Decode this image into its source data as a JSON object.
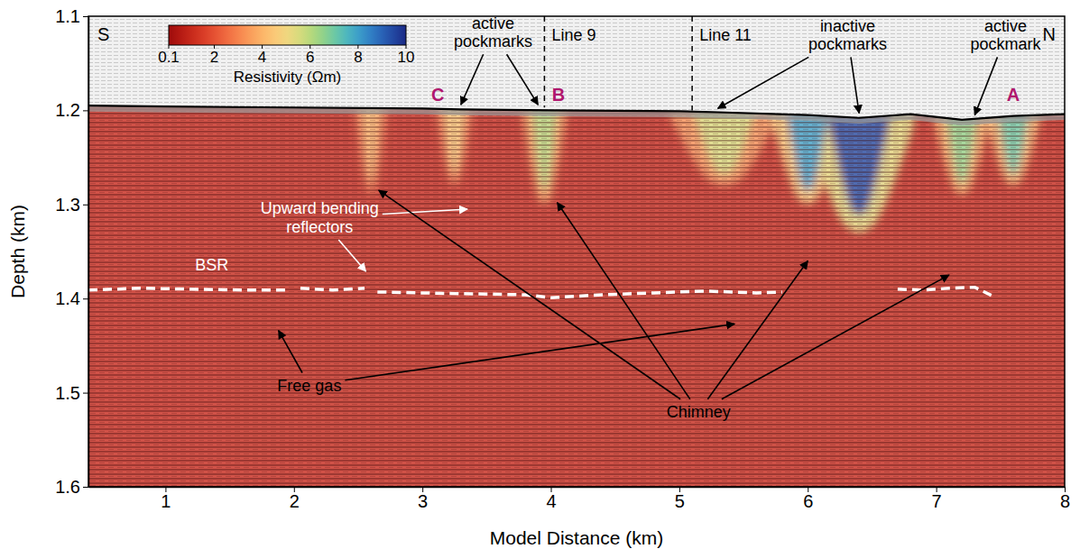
{
  "chart_data": {
    "type": "seismic_section",
    "x_label": "Model Distance (km)",
    "y_label": "Depth (km)",
    "xlim": [
      0.4,
      8.0
    ],
    "xticks": [
      1,
      2,
      3,
      4,
      5,
      6,
      7,
      8
    ],
    "ylim": [
      1.6,
      1.1
    ],
    "yticks": [
      1.1,
      1.2,
      1.3,
      1.4,
      1.5,
      1.6
    ],
    "ends": {
      "left": "S",
      "right": "N"
    },
    "colorbar": {
      "label": "Resistivity (Ωm)",
      "range": [
        0.1,
        10
      ],
      "ticks": [
        0.1,
        2,
        4,
        6,
        8,
        10
      ]
    },
    "background_resistivity": 1,
    "anomalies": [
      {
        "x": 2.6,
        "half_width": 0.09,
        "depth_top": 1.198,
        "depth_bottom": 1.29,
        "resistivity": 4
      },
      {
        "x": 3.25,
        "half_width": 0.1,
        "depth_top": 1.199,
        "depth_bottom": 1.28,
        "resistivity": 4.5
      },
      {
        "x": 3.95,
        "half_width": 0.12,
        "depth_top": 1.2,
        "depth_bottom": 1.3,
        "resistivity": 6
      },
      {
        "x": 5.35,
        "half_width": 0.3,
        "depth_top": 1.202,
        "depth_bottom": 1.28,
        "resistivity": 5.5
      },
      {
        "x": 6.0,
        "half_width": 0.2,
        "depth_top": 1.205,
        "depth_bottom": 1.3,
        "resistivity": 8
      },
      {
        "x": 6.4,
        "half_width": 0.3,
        "depth_top": 1.207,
        "depth_bottom": 1.33,
        "resistivity": 9.5
      },
      {
        "x": 7.2,
        "half_width": 0.15,
        "depth_top": 1.21,
        "depth_bottom": 1.29,
        "resistivity": 6.5
      },
      {
        "x": 7.6,
        "half_width": 0.15,
        "depth_top": 1.206,
        "depth_bottom": 1.28,
        "resistivity": 7
      }
    ],
    "seafloor": {
      "x": [
        0.4,
        1,
        2,
        3,
        3.3,
        4,
        5,
        5.3,
        6,
        6.4,
        6.8,
        7.2,
        7.6,
        8
      ],
      "depth": [
        1.195,
        1.196,
        1.197,
        1.198,
        1.199,
        1.2,
        1.201,
        1.202,
        1.205,
        1.208,
        1.204,
        1.21,
        1.206,
        1.204
      ]
    },
    "bsr": {
      "color": "#ffffff",
      "line_style": "dashed",
      "x": [
        0.4,
        0.8,
        1.2,
        1.6,
        1.95,
        2.0,
        2.05,
        2.3,
        2.55,
        2.6,
        2.65,
        3.0,
        3.4,
        3.8,
        4.0,
        4.4,
        4.8,
        5.2,
        5.6,
        5.8,
        6.2,
        6.7,
        6.9,
        7.1,
        7.3,
        7.45
      ],
      "depth": [
        1.391,
        1.389,
        1.39,
        1.391,
        1.391,
        null,
        1.389,
        1.391,
        1.389,
        null,
        1.393,
        1.394,
        1.395,
        1.396,
        1.399,
        1.396,
        1.394,
        1.392,
        1.394,
        1.393,
        null,
        1.39,
        1.391,
        1.389,
        1.388,
        1.398
      ]
    },
    "survey_lines": [
      {
        "label": "Line 9",
        "x": 3.95,
        "depth": [
          1.1,
          1.197
        ]
      },
      {
        "label": "Line 11",
        "x": 5.1,
        "depth": [
          1.1,
          1.2
        ]
      }
    ],
    "sites": {
      "color": "#b0166e",
      "items": [
        {
          "label": "A",
          "x": 7.6,
          "depth": 1.19
        },
        {
          "label": "B",
          "x": 4.06,
          "depth": 1.19
        },
        {
          "label": "C",
          "x": 3.12,
          "depth": 1.19
        }
      ]
    },
    "annotations": [
      {
        "text": [
          "active",
          "pockmarks"
        ],
        "x": 3.55,
        "depth": 1.113,
        "color": "#000000",
        "arrows": [
          {
            "x": 3.3,
            "depth": 1.194
          },
          {
            "x": 3.9,
            "depth": 1.194
          }
        ]
      },
      {
        "text": [
          "inactive",
          "pockmarks"
        ],
        "x": 6.31,
        "depth": 1.116,
        "color": "#000000",
        "arrows": [
          {
            "x": 5.3,
            "depth": 1.198
          },
          {
            "x": 6.4,
            "depth": 1.203
          }
        ]
      },
      {
        "text": [
          "active",
          "pockmark"
        ],
        "x": 7.54,
        "depth": 1.116,
        "color": "#000000",
        "arrows": [
          {
            "x": 7.3,
            "depth": 1.205
          }
        ]
      },
      {
        "text": [
          "Upward bending",
          "reflectors"
        ],
        "x": 2.2,
        "depth": 1.31,
        "color": "#ffffff",
        "arrows": [
          {
            "x": 3.35,
            "depth": 1.305
          },
          {
            "x": 2.56,
            "depth": 1.371
          }
        ]
      },
      {
        "text": [
          "BSR"
        ],
        "x": 1.36,
        "depth": 1.37,
        "color": "#ffffff",
        "arrows": []
      },
      {
        "text": [
          "Free gas"
        ],
        "x": 2.12,
        "depth": 1.498,
        "color": "#000000",
        "arrows": [
          {
            "x": 1.88,
            "depth": 1.434
          },
          {
            "x": 5.43,
            "depth": 1.427
          }
        ]
      },
      {
        "text": [
          "Chimney"
        ],
        "x": 5.15,
        "depth": 1.526,
        "color": "#000000",
        "arrows": [
          {
            "x": 2.66,
            "depth": 1.285
          },
          {
            "x": 4.05,
            "depth": 1.298
          },
          {
            "x": 6.0,
            "depth": 1.36
          },
          {
            "x": 7.1,
            "depth": 1.375
          }
        ]
      }
    ]
  }
}
